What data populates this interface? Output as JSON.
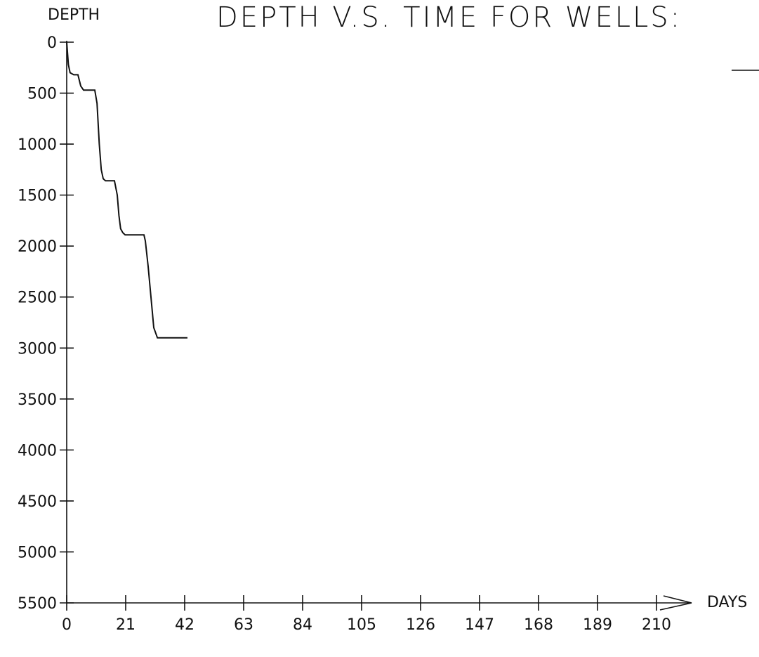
{
  "chart_data": {
    "type": "line",
    "title": "DEPTH V.S. TIME FOR WELLS:",
    "xlabel": "DAYS",
    "ylabel": "DEPTH",
    "x_ticks": [
      "0",
      "21",
      "42",
      "63",
      "84",
      "105",
      "126",
      "147",
      "168",
      "189",
      "210"
    ],
    "y_ticks": [
      "0",
      "500",
      "1000",
      "1500",
      "2000",
      "2500",
      "3000",
      "3500",
      "4000",
      "4500",
      "5000",
      "5500"
    ],
    "xlim": [
      0,
      210
    ],
    "ylim": [
      0,
      5500
    ],
    "y_inverted": true,
    "grid": false,
    "series": [
      {
        "x": [
          0,
          0.6,
          1.2,
          2.5,
          4,
          5,
          6,
          8,
          10,
          10.8,
          11.6,
          12.3,
          13,
          13.8,
          14.5,
          15.5,
          17,
          18,
          18.6,
          19.2,
          20,
          20.8,
          22,
          25,
          27.5,
          28,
          29,
          30,
          31,
          32.3,
          35,
          38,
          40,
          43
        ],
        "y": [
          0,
          220,
          300,
          320,
          320,
          430,
          470,
          470,
          470,
          600,
          1000,
          1250,
          1340,
          1360,
          1360,
          1360,
          1360,
          1500,
          1700,
          1830,
          1870,
          1890,
          1890,
          1890,
          1890,
          1950,
          2200,
          2500,
          2800,
          2900,
          2900,
          2900,
          2900,
          2900
        ]
      }
    ]
  }
}
